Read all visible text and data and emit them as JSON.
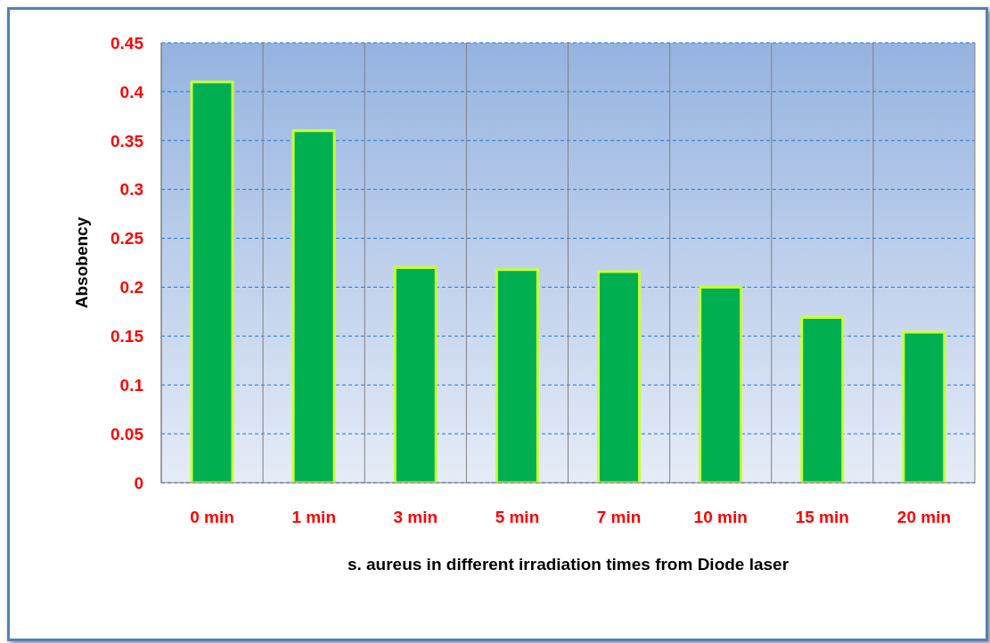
{
  "chart_data": {
    "type": "bar",
    "xlabel": "s. aureus in different irradiation times from Diode laser",
    "ylabel": "Absobency",
    "categories": [
      "0 min",
      "1 min",
      "3 min",
      "5 min",
      "7 min",
      "10 min",
      "15 min",
      "20 min"
    ],
    "values": [
      0.41,
      0.36,
      0.22,
      0.218,
      0.216,
      0.2,
      0.169,
      0.154
    ],
    "color": "#00b050",
    "ylim": [
      0,
      0.45
    ],
    "yticks": [
      0,
      0.05,
      0.1,
      0.15,
      0.2,
      0.25,
      0.3,
      0.35,
      0.4,
      0.45
    ],
    "grid": true
  }
}
